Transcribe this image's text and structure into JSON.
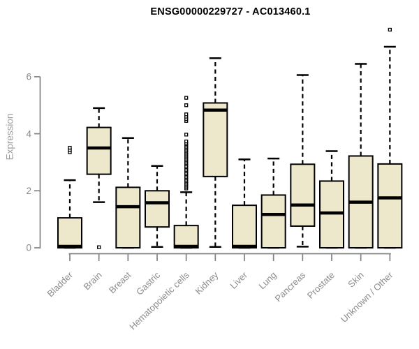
{
  "title": "ENSG00000229727 - AC013460.1",
  "colors": {
    "background": "#ffffff",
    "box_fill": "#ede8cb",
    "box_stroke": "#000000",
    "median": "#000000",
    "whisker": "#000000",
    "outlier_stroke": "#000000",
    "outlier_fill": "#ffffff",
    "axis_line": "#818181",
    "tick_text": "#8b8b8b",
    "category_text": "#8b8b8b",
    "ylabel_text": "#9d9d9d",
    "title_text": "#000000"
  },
  "chart_data": {
    "type": "boxplot",
    "title": "ENSG00000229727 - AC013460.1",
    "xlabel": "",
    "ylabel": "Expression",
    "yticks": [
      0,
      2,
      4,
      6
    ],
    "ylim": [
      0,
      7.8
    ],
    "grid": false,
    "legend": "none",
    "categories": [
      "Bladder",
      "Brain",
      "Breast",
      "Gastric",
      "Hematopoietic cells",
      "Kidney",
      "Liver",
      "Lung",
      "Pancreas",
      "Prostate",
      "Skin",
      "Unknown / Other"
    ],
    "boxes": [
      {
        "category": "Bladder",
        "whisker_low": 0,
        "q1": 0,
        "median": 0.05,
        "q3": 1.05,
        "whisker_high": 2.37,
        "outliers": [
          3.35,
          3.43,
          3.51
        ]
      },
      {
        "category": "Brain",
        "whisker_low": 1.6,
        "q1": 2.58,
        "median": 3.5,
        "q3": 4.22,
        "whisker_high": 4.9,
        "outliers": [
          0.02
        ]
      },
      {
        "category": "Breast",
        "whisker_low": 0,
        "q1": 0,
        "median": 1.44,
        "q3": 2.12,
        "whisker_high": 3.85,
        "outliers": []
      },
      {
        "category": "Gastric",
        "whisker_low": 0.03,
        "q1": 0.73,
        "median": 1.58,
        "q3": 2.0,
        "whisker_high": 2.87,
        "outliers": []
      },
      {
        "category": "Hematopoietic cells",
        "whisker_low": 0,
        "q1": 0,
        "median": 0.05,
        "q3": 0.78,
        "whisker_high": 1.95,
        "outliers": [
          2.08,
          2.13,
          2.18,
          2.23,
          2.28,
          2.33,
          2.38,
          2.43,
          2.48,
          2.53,
          2.58,
          2.63,
          2.68,
          2.73,
          2.78,
          2.83,
          2.88,
          2.93,
          2.98,
          3.03,
          3.08,
          3.13,
          3.18,
          3.23,
          3.28,
          3.33,
          3.38,
          3.43,
          3.48,
          3.53,
          3.58,
          3.63,
          3.68,
          3.73,
          3.97,
          4.45,
          4.52,
          4.6,
          4.68,
          5.0,
          5.26
        ]
      },
      {
        "category": "Kidney",
        "whisker_low": 0.03,
        "q1": 2.5,
        "median": 4.83,
        "q3": 5.08,
        "whisker_high": 6.65,
        "outliers": []
      },
      {
        "category": "Liver",
        "whisker_low": 0,
        "q1": 0,
        "median": 0.05,
        "q3": 1.49,
        "whisker_high": 3.1,
        "outliers": []
      },
      {
        "category": "Lung",
        "whisker_low": 0,
        "q1": 0,
        "median": 1.17,
        "q3": 1.85,
        "whisker_high": 3.13,
        "outliers": []
      },
      {
        "category": "Pancreas",
        "whisker_low": 0.04,
        "q1": 0.76,
        "median": 1.5,
        "q3": 2.93,
        "whisker_high": 6.06,
        "outliers": []
      },
      {
        "category": "Prostate",
        "whisker_low": 0,
        "q1": 0,
        "median": 1.22,
        "q3": 2.34,
        "whisker_high": 3.39,
        "outliers": []
      },
      {
        "category": "Skin",
        "whisker_low": 0,
        "q1": 0,
        "median": 1.6,
        "q3": 3.22,
        "whisker_high": 6.45,
        "outliers": []
      },
      {
        "category": "Unknown / Other",
        "whisker_low": 0,
        "q1": 0,
        "median": 1.75,
        "q3": 2.94,
        "whisker_high": 7.05,
        "outliers": [
          7.65
        ]
      }
    ]
  }
}
